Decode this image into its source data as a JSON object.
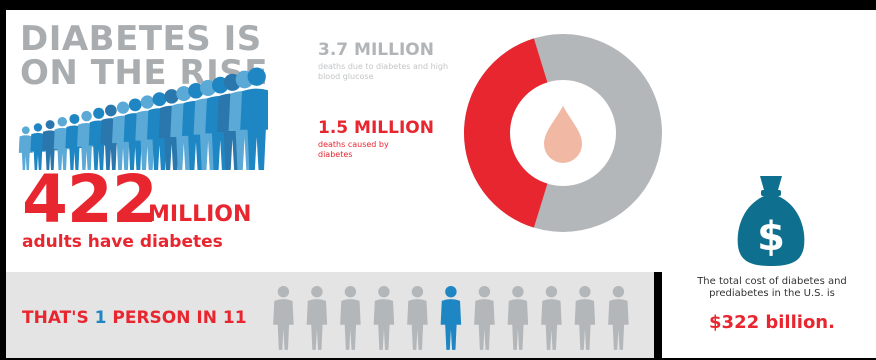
{
  "headline": {
    "line1": "DIABETES IS",
    "line2": "ON THE RISE"
  },
  "adults": {
    "number": "422",
    "unit": "MILLION",
    "caption": "adults have diabetes"
  },
  "deaths": {
    "total_number": "3.7 MILLION",
    "total_caption": "deaths due to diabetes and high blood glucose",
    "diabetes_number": "1.5 MILLION",
    "diabetes_caption": "deaths caused by diabetes",
    "diabetes_share": 0.405
  },
  "ratio": {
    "prefix": "THAT'S ",
    "highlight": "1",
    "suffix": " PERSON IN 11",
    "highlighted_index": 5,
    "total": 11
  },
  "cost": {
    "caption": "The total cost of diabetes and prediabetes in the U.S. is",
    "value": "$322 billion."
  },
  "colors": {
    "red": "#e8262f",
    "blue": "#1f86c4",
    "light_blue": "#5aa9d6",
    "gray": "#b4b7ba",
    "teal": "#0f6f8f",
    "drop": "#f1b9a4"
  },
  "icons": {
    "crowd": "people-crowd-icon",
    "drop": "blood-drop-icon",
    "person": "person-icon",
    "bag": "money-bag-icon"
  }
}
